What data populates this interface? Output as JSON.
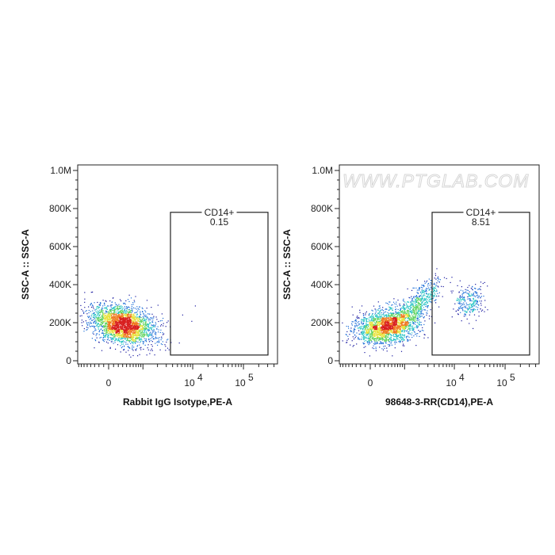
{
  "watermark": "WWW.PTGLAB.COM",
  "chart_data": [
    {
      "type": "scatter",
      "subtype": "flow-cytometry-pseudocolor-density",
      "xlabel": "Rabbit IgG Isotype,PE-A",
      "ylabel": "SSC-A :: SSC-A",
      "x_scale": "biexponential",
      "y_scale": "linear",
      "xlim": [
        -800,
        300000
      ],
      "ylim": [
        0,
        1000000
      ],
      "x_ticks": [
        {
          "value": 0,
          "label": "0"
        },
        {
          "value": 10000,
          "label": "10",
          "exp": "4"
        },
        {
          "value": 100000,
          "label": "10",
          "exp": "5"
        }
      ],
      "y_ticks": [
        {
          "value": 0,
          "label": "0"
        },
        {
          "value": 200000,
          "label": "200K"
        },
        {
          "value": 400000,
          "label": "400K"
        },
        {
          "value": 600000,
          "label": "600K"
        },
        {
          "value": 800000,
          "label": "800K"
        },
        {
          "value": 1000000,
          "label": "1.0M"
        }
      ],
      "gate": {
        "name": "CD14+",
        "percent": "0.15",
        "x_range": [
          2500,
          230000
        ],
        "y_range": [
          30000,
          780000
        ]
      },
      "populations": [
        {
          "x_center": 300,
          "y_center": 170000,
          "events": 2600
        },
        {
          "x_center": 8000,
          "y_center": 230000,
          "events": 4
        }
      ],
      "colormap": [
        "#1a1aa0",
        "#1f6fd8",
        "#27c4c4",
        "#5fd35f",
        "#e8e23a",
        "#f07a22",
        "#d81e1e"
      ]
    },
    {
      "type": "scatter",
      "subtype": "flow-cytometry-pseudocolor-density",
      "xlabel": "98648-3-RR(CD14),PE-A",
      "ylabel": "SSC-A :: SSC-A",
      "x_scale": "biexponential",
      "y_scale": "linear",
      "xlim": [
        -800,
        300000
      ],
      "ylim": [
        0,
        1000000
      ],
      "x_ticks": [
        {
          "value": 0,
          "label": "0"
        },
        {
          "value": 10000,
          "label": "10",
          "exp": "4"
        },
        {
          "value": 100000,
          "label": "10",
          "exp": "5"
        }
      ],
      "y_ticks": [
        {
          "value": 0,
          "label": "0"
        },
        {
          "value": 200000,
          "label": "200K"
        },
        {
          "value": 400000,
          "label": "400K"
        },
        {
          "value": 600000,
          "label": "600K"
        },
        {
          "value": 800000,
          "label": "800K"
        },
        {
          "value": 1000000,
          "label": "1.0M"
        }
      ],
      "gate": {
        "name": "CD14+",
        "percent": "8.51",
        "x_range": [
          2500,
          230000
        ],
        "y_range": [
          30000,
          780000
        ]
      },
      "populations": [
        {
          "x_center": 350,
          "y_center": 160000,
          "events": 2000
        },
        {
          "x_center": 1500,
          "y_center": 260000,
          "events": 700
        },
        {
          "x_center": 19000,
          "y_center": 290000,
          "events": 260
        }
      ],
      "colormap": [
        "#1a1aa0",
        "#1f6fd8",
        "#27c4c4",
        "#5fd35f",
        "#e8e23a",
        "#f07a22",
        "#d81e1e"
      ]
    }
  ]
}
